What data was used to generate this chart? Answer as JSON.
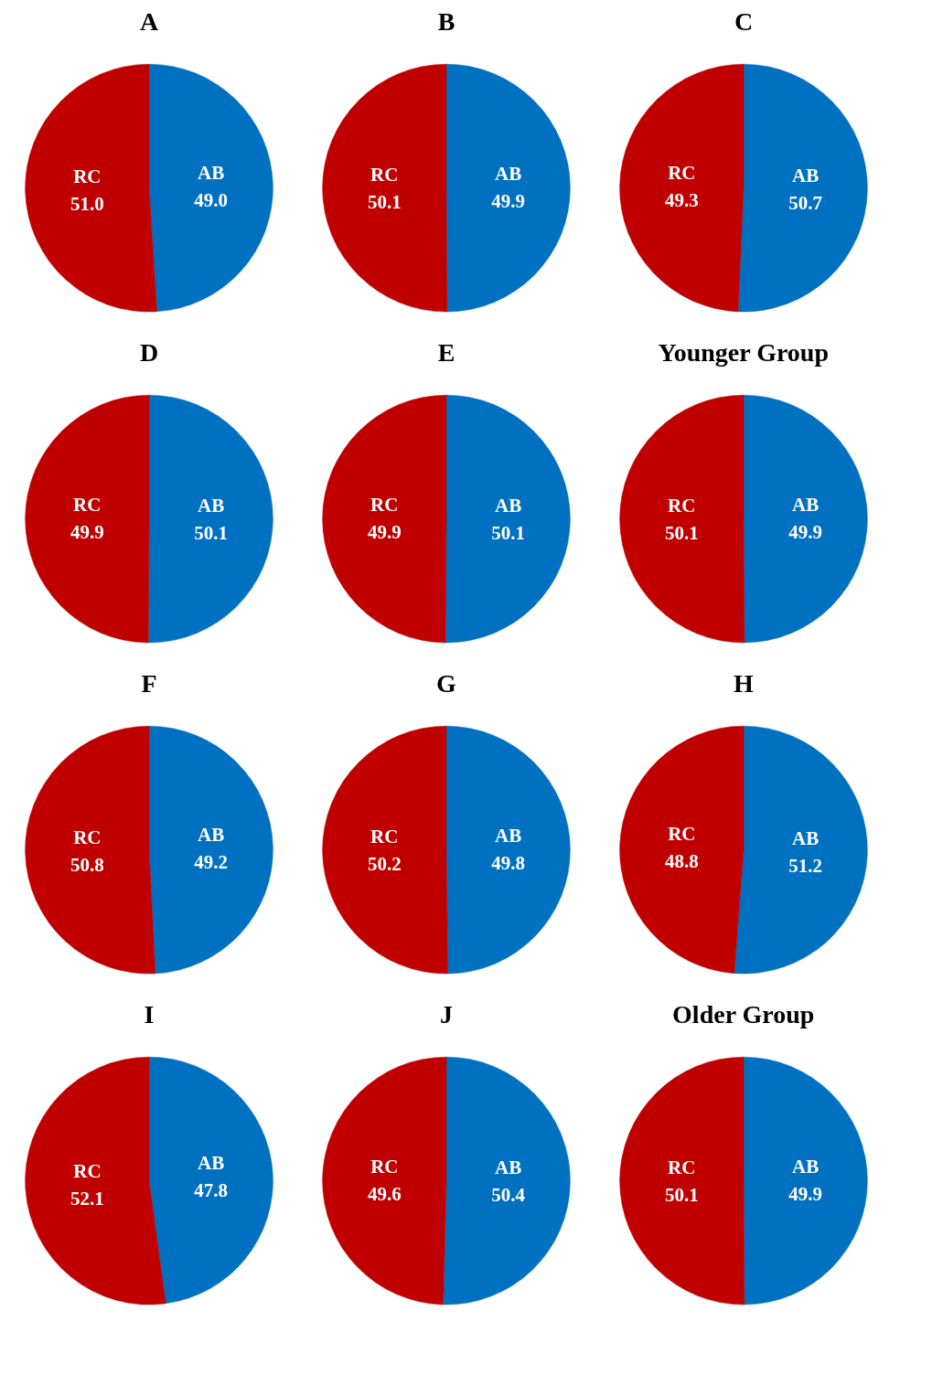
{
  "chart_data": [
    {
      "type": "pie",
      "title": "A",
      "categories": [
        "AB",
        "RC"
      ],
      "values": [
        49.0,
        51.0
      ],
      "value_labels": [
        "49.0",
        "51.0"
      ],
      "colors": [
        "#0070c0",
        "#c00000"
      ]
    },
    {
      "type": "pie",
      "title": "B",
      "categories": [
        "AB",
        "RC"
      ],
      "values": [
        49.9,
        50.1
      ],
      "colors": [
        "#0070c0",
        "#c00000"
      ],
      "data_labels": true
    },
    {
      "type": "pie",
      "title": "C",
      "categories": [
        "AB",
        "RC"
      ],
      "values": [
        50.7,
        49.3
      ],
      "colors": [
        "#0070c0",
        "#c00000"
      ],
      "data_labels": true
    },
    {
      "type": "pie",
      "title": "D",
      "categories": [
        "AB",
        "RC"
      ],
      "values": [
        50.1,
        49.9
      ],
      "colors": [
        "#0070c0",
        "#c00000"
      ],
      "data_labels": true
    },
    {
      "type": "pie",
      "title": "E",
      "categories": [
        "AB",
        "RC"
      ],
      "values": [
        50.1,
        49.9
      ],
      "colors": [
        "#0070c0",
        "#c00000"
      ],
      "data_labels": true
    },
    {
      "type": "pie",
      "title": "Younger Group",
      "categories": [
        "AB",
        "RC"
      ],
      "values": [
        49.9,
        50.1
      ],
      "colors": [
        "#0070c0",
        "#c00000"
      ],
      "data_labels": true
    },
    {
      "type": "pie",
      "title": "F",
      "categories": [
        "AB",
        "RC"
      ],
      "values": [
        49.2,
        50.8
      ],
      "colors": [
        "#0070c0",
        "#c00000"
      ],
      "data_labels": true
    },
    {
      "type": "pie",
      "title": "G",
      "categories": [
        "AB",
        "RC"
      ],
      "values": [
        49.8,
        50.2
      ],
      "colors": [
        "#0070c0",
        "#c00000"
      ],
      "data_labels": true
    },
    {
      "type": "pie",
      "title": "H",
      "categories": [
        "AB",
        "RC"
      ],
      "values": [
        51.2,
        48.8
      ],
      "colors": [
        "#0070c0",
        "#c00000"
      ],
      "data_labels": true
    },
    {
      "type": "pie",
      "title": "I",
      "categories": [
        "AB",
        "RC"
      ],
      "values": [
        47.8,
        52.1
      ],
      "colors": [
        "#0070c0",
        "#c00000"
      ],
      "data_labels": true
    },
    {
      "type": "pie",
      "title": "J",
      "categories": [
        "AB",
        "RC"
      ],
      "values": [
        50.4,
        49.6
      ],
      "colors": [
        "#0070c0",
        "#c00000"
      ],
      "data_labels": true
    },
    {
      "type": "pie",
      "title": "Older Group",
      "categories": [
        "AB",
        "RC"
      ],
      "values": [
        49.9,
        50.1
      ],
      "colors": [
        "#0070c0",
        "#c00000"
      ],
      "data_labels": true
    }
  ]
}
